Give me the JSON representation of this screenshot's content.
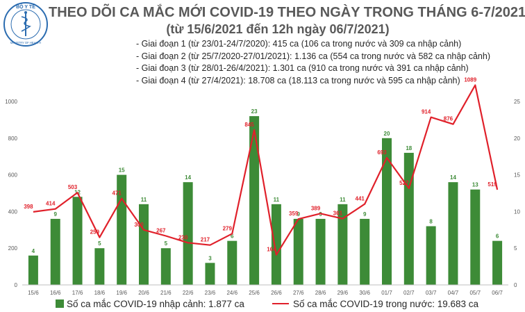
{
  "header": {
    "title": "THEO DÕI CA MẮC MỚI COVID-19 THEO NGÀY TRONG THÁNG 6-7/2021",
    "subtitle": "(từ 15/6/2021 đến 12h ngày 06/7/2021)",
    "notes": [
      "Giai đoạn 1 (từ 23/01-24/7/2020): 415 ca (106 ca trong nước và 309 ca nhập cảnh)",
      "Giai đoạn 2 (từ 25/7/2020-27/01/2021): 1.136 ca (554 ca trong nước và 582 ca nhập cảnh)",
      "Giai đoạn 3 (từ 28/01-26/4/2021): 1.301 ca (910 ca trong nước và 391 ca nhập cảnh)",
      "Giai đoạn 4 (từ 27/4/2021): 18.708 ca (18.113 ca trong nước và 595 ca nhập cảnh)"
    ]
  },
  "logo": {
    "top_text": "BỘ Y TẾ",
    "bottom_text": "MINISTRY OF HEALTH",
    "icon": "caduceus-icon"
  },
  "colors": {
    "bar": "#3d8b37",
    "line": "#e0202a",
    "title": "#595959",
    "axis": "#595959"
  },
  "chart_data": {
    "type": "bar+line",
    "categories": [
      "15/6",
      "16/6",
      "17/6",
      "18/6",
      "19/6",
      "20/6",
      "21/6",
      "22/6",
      "23/6",
      "24/6",
      "25/6",
      "26/6",
      "27/6",
      "28/6",
      "29/6",
      "30/6",
      "01/7",
      "02/7",
      "03/7",
      "04/7",
      "05/7",
      "06/7"
    ],
    "series": [
      {
        "name": "Số ca mắc COVID-19 nhập cảnh: 1.877 ca",
        "type": "bar",
        "axis": "right",
        "values": [
          4,
          9,
          12,
          5,
          15,
          11,
          5,
          14,
          3,
          6,
          23,
          11,
          9,
          9,
          11,
          9,
          20,
          18,
          8,
          14,
          13,
          6
        ]
      },
      {
        "name": "Số ca mắc COVID-19 trong nước: 19.683 ca",
        "type": "line",
        "axis": "left",
        "values": [
          398,
          414,
          503,
          259,
          471,
          300,
          267,
          230,
          217,
          279,
          845,
          164,
          359,
          389,
          361,
          441,
          693,
          527,
          914,
          876,
          1089,
          519
        ]
      }
    ],
    "y_left": {
      "min": 0,
      "max": 1000,
      "ticks": [
        "0",
        "200",
        "400",
        "600",
        "800",
        "1000"
      ]
    },
    "y_right": {
      "min": 0,
      "max": 25,
      "ticks": [
        "0",
        "5",
        "10",
        "15",
        "20",
        "25"
      ]
    },
    "grid": false,
    "legend_position": "bottom"
  }
}
